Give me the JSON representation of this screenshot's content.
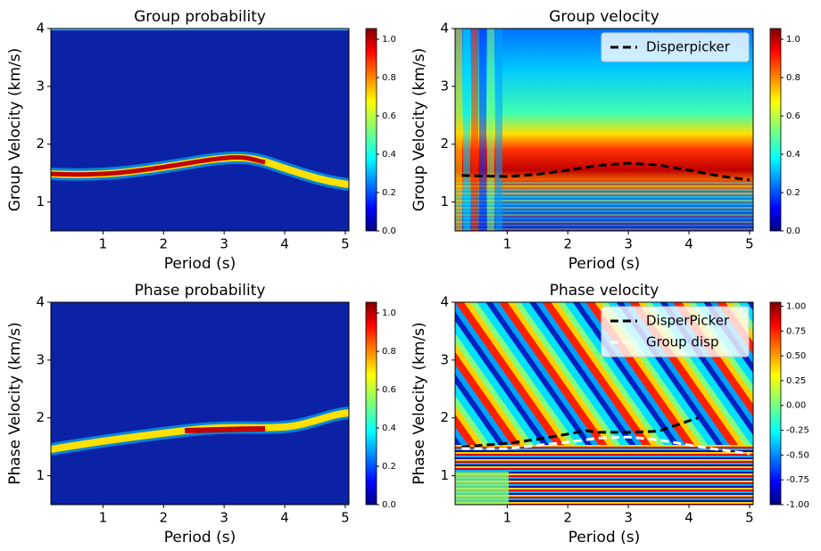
{
  "chart_data": [
    {
      "type": "heatmap",
      "title": "Group probability",
      "xlabel": "Period (s)",
      "ylabel": "Group Velocity (km/s)",
      "xlim": [
        0.14,
        5.06
      ],
      "ylim": [
        0.5,
        4
      ],
      "xticks": [
        1,
        2,
        3,
        4,
        5
      ],
      "yticks": [
        1,
        2,
        3,
        4
      ],
      "colormap": "jet",
      "colorbar": {
        "lim": [
          0,
          1.056
        ],
        "ticks": [
          {
            "value": 0,
            "label": "0.0"
          },
          0.2,
          0.4,
          0.6,
          0.8,
          {
            "value": 1,
            "label": "1.0"
          }
        ]
      }
    },
    {
      "type": "heatmap",
      "title": "Group velocity",
      "xlabel": "Period (s)",
      "ylabel": "Group Velocity (km/s)",
      "xlim": [
        0.14,
        5.06
      ],
      "ylim": [
        0.5,
        4
      ],
      "xticks": [
        1,
        2,
        3,
        4,
        5
      ],
      "yticks": [
        1,
        2,
        3,
        4
      ],
      "colormap": "jet",
      "colorbar": {
        "lim": [
          0,
          1.056
        ],
        "ticks": [
          {
            "value": 0,
            "label": "0.0"
          },
          0.2,
          0.4,
          0.6,
          0.8,
          {
            "value": 1,
            "label": "1.0"
          }
        ]
      },
      "legend": "upper right",
      "series": [
        {
          "name": "Disperpicker",
          "color": "#000000",
          "dashed": true,
          "x": [
            0.25,
            1,
            1.5,
            2,
            2.5,
            3,
            3.5,
            4,
            4.5,
            5
          ],
          "values": [
            1.46,
            1.44,
            1.48,
            1.55,
            1.63,
            1.67,
            1.64,
            1.55,
            1.45,
            1.38
          ]
        }
      ]
    },
    {
      "type": "heatmap",
      "title": "Phase probability",
      "xlabel": "Period (s)",
      "ylabel": "Phase Velocity (km/s)",
      "xlim": [
        0.14,
        5.06
      ],
      "ylim": [
        0.5,
        4
      ],
      "xticks": [
        1,
        2,
        3,
        4,
        5
      ],
      "yticks": [
        1,
        2,
        3,
        4
      ],
      "colormap": "jet",
      "colorbar": {
        "lim": [
          0,
          1.056
        ],
        "ticks": [
          {
            "value": 0,
            "label": "0.0"
          },
          0.2,
          0.4,
          0.6,
          0.8,
          {
            "value": 1,
            "label": "1.0"
          }
        ]
      }
    },
    {
      "type": "heatmap",
      "title": "Phase velocity",
      "xlabel": "Period (s)",
      "ylabel": "Phase Velocity (km/s)",
      "xlim": [
        0.14,
        5.06
      ],
      "ylim": [
        0.5,
        4
      ],
      "xticks": [
        1,
        2,
        3,
        4,
        5
      ],
      "yticks": [
        1,
        2,
        3,
        4
      ],
      "colormap": "jet",
      "colorbar": {
        "lim": [
          -1,
          1.04
        ],
        "ticks": [
          {
            "value": -1,
            "label": "-1.00"
          },
          -0.75,
          {
            "value": -0.5,
            "label": "-0.50"
          },
          -0.25,
          {
            "value": 0,
            "label": "0.00"
          },
          0.25,
          {
            "value": 0.5,
            "label": "0.50"
          },
          0.75,
          {
            "value": 1,
            "label": "1.00"
          }
        ]
      },
      "legend": "upper right",
      "series": [
        {
          "name": "DisperPicker",
          "color": "#000000",
          "dashed": true,
          "x": [
            0.25,
            1,
            1.5,
            2,
            2.3,
            2.5,
            3,
            3.5,
            4,
            4.15
          ],
          "values": [
            1.5,
            1.56,
            1.63,
            1.72,
            1.78,
            1.75,
            1.75,
            1.77,
            1.95,
            2.0
          ]
        },
        {
          "name": "Group disp",
          "color": "#ffffff",
          "dashed": true,
          "x": [
            0.25,
            1,
            2,
            2.5,
            3,
            3.5,
            4,
            4.5,
            5
          ],
          "values": [
            1.47,
            1.47,
            1.58,
            1.65,
            1.67,
            1.62,
            1.53,
            1.45,
            1.38
          ]
        }
      ]
    }
  ]
}
